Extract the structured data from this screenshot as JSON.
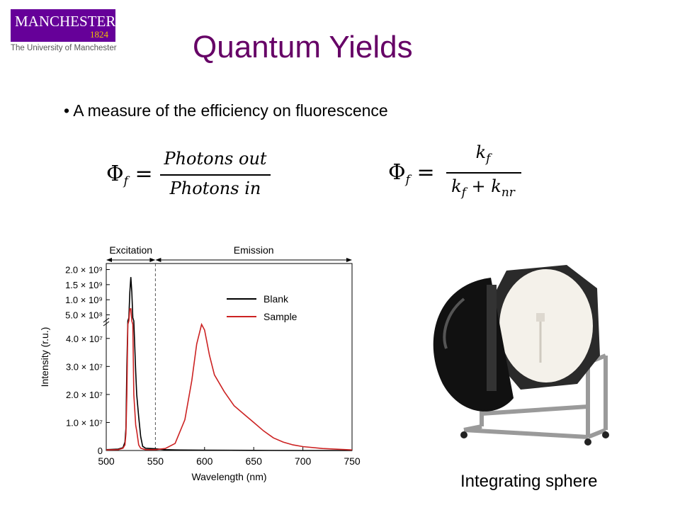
{
  "logo": {
    "name": "MANCHESTER",
    "year": "1824",
    "subtitle": "The University of Manchester"
  },
  "title": "Quantum Yields",
  "bullet": "A measure of the efficiency on fluorescence",
  "equation1": {
    "lhs": "Φ",
    "lhs_sub": "f",
    "equals": "=",
    "numerator": "Photons out",
    "denominator": "Photons in"
  },
  "equation2": {
    "lhs": "Φ",
    "lhs_sub": "f",
    "equals": "=",
    "num_base": "k",
    "num_sub": "f",
    "den_base1": "k",
    "den_sub1": "f",
    "den_plus": "+",
    "den_base2": "k",
    "den_sub2": "nr"
  },
  "photo_caption": "Integrating sphere",
  "chart_data": {
    "type": "line",
    "xlabel": "Wavelength (nm)",
    "ylabel": "Intensity (r.u.)",
    "xlim": [
      500,
      750
    ],
    "x_ticks": [
      "500",
      "550",
      "600",
      "650",
      "700",
      "750"
    ],
    "y_ticks_lower": [
      {
        "value": 0,
        "label": "0"
      },
      {
        "value": 10000000,
        "label": "1.0 × 10⁷"
      },
      {
        "value": 20000000,
        "label": "2.0 × 10⁷"
      },
      {
        "value": 30000000,
        "label": "3.0 × 10⁷"
      },
      {
        "value": 40000000,
        "label": "4.0 × 10⁷"
      }
    ],
    "y_ticks_upper": [
      {
        "value": 500000000,
        "label": "5.0 × 10⁸"
      },
      {
        "value": 1000000000,
        "label": "1.0 × 10⁹"
      },
      {
        "value": 1500000000,
        "label": "1.5 × 10⁹"
      },
      {
        "value": 2000000000,
        "label": "2.0 × 10⁹"
      }
    ],
    "lower_ylim": [
      0,
      46000000
    ],
    "upper_ylim": [
      300000000,
      2200000000
    ],
    "axis_break_at": 45000000,
    "regions": [
      {
        "label": "Excitation",
        "x_start": 500,
        "x_end": 550
      },
      {
        "label": "Emission",
        "x_start": 550,
        "x_end": 750
      }
    ],
    "divider_x": 550,
    "legend_position": "top-right",
    "series": [
      {
        "name": "Blank",
        "color": "#000000",
        "points": [
          [
            500,
            300000
          ],
          [
            512,
            500000
          ],
          [
            517,
            1000000
          ],
          [
            519,
            3000000
          ],
          [
            520,
            8000000
          ],
          [
            521,
            30000000
          ],
          [
            522,
            60000000
          ],
          [
            523,
            400000000
          ],
          [
            524,
            1250000000
          ],
          [
            525,
            1750000000
          ],
          [
            526,
            1250000000
          ],
          [
            527,
            400000000
          ],
          [
            528,
            60000000
          ],
          [
            530,
            28000000
          ],
          [
            531,
            20000000
          ],
          [
            533,
            12000000
          ],
          [
            535,
            5000000
          ],
          [
            537,
            1500000
          ],
          [
            540,
            800000
          ],
          [
            550,
            600000
          ],
          [
            560,
            300000
          ],
          [
            570,
            200000
          ],
          [
            600,
            100000
          ],
          [
            650,
            50000
          ],
          [
            700,
            0
          ],
          [
            750,
            0
          ]
        ]
      },
      {
        "name": "Sample",
        "color": "#cc2222",
        "points": [
          [
            500,
            200000
          ],
          [
            512,
            300000
          ],
          [
            517,
            800000
          ],
          [
            519,
            2000000
          ],
          [
            520,
            6000000
          ],
          [
            521,
            20000000
          ],
          [
            522,
            45000000
          ],
          [
            523,
            200000000
          ],
          [
            524,
            700000000
          ],
          [
            525,
            700000000
          ],
          [
            526,
            200000000
          ],
          [
            527,
            45000000
          ],
          [
            528,
            20000000
          ],
          [
            530,
            9000000
          ],
          [
            531,
            7000000
          ],
          [
            533,
            2000000
          ],
          [
            535,
            800000
          ],
          [
            540,
            300000
          ],
          [
            550,
            300000
          ],
          [
            560,
            700000
          ],
          [
            570,
            2500000
          ],
          [
            580,
            11000000
          ],
          [
            587,
            25000000
          ],
          [
            592,
            38000000
          ],
          [
            597,
            45000000
          ],
          [
            600,
            43000000
          ],
          [
            605,
            34000000
          ],
          [
            610,
            27000000
          ],
          [
            620,
            21000000
          ],
          [
            630,
            16000000
          ],
          [
            640,
            13000000
          ],
          [
            650,
            10000000
          ],
          [
            660,
            7000000
          ],
          [
            670,
            4500000
          ],
          [
            680,
            3000000
          ],
          [
            690,
            2000000
          ],
          [
            700,
            1400000
          ],
          [
            720,
            700000
          ],
          [
            750,
            200000
          ]
        ]
      }
    ]
  }
}
